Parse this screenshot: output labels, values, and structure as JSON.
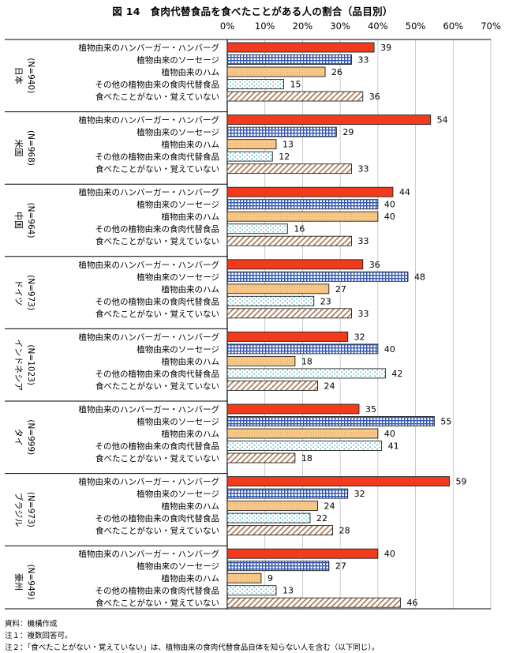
{
  "title": "図 14　食肉代替食品を食べたことがある人の割合（品目別）",
  "chart_data": {
    "type": "bar",
    "orientation": "horizontal",
    "title": "図 14　食肉代替食品を食べたことがある人の割合（品目別）",
    "xlim": [
      0,
      70
    ],
    "ticks": [
      "0%",
      "10%",
      "20%",
      "30%",
      "40%",
      "50%",
      "60%",
      "70%"
    ],
    "tick_values": [
      0,
      10,
      20,
      30,
      40,
      50,
      60,
      70
    ],
    "grid": true,
    "items": [
      "植物由来のハンバーガー・ハンバーグ",
      "植物由来のソーセージ",
      "植物由来のハム",
      "その他の植物由来の食肉代替食品",
      "食べたことがない・覚えていない"
    ],
    "item_colors": [
      "#f23a1c",
      "#4a6fc0",
      "#f8c98a",
      "#a8d4dc",
      "#c8a384"
    ],
    "groups": [
      {
        "country": "日本",
        "n": "(N=940)",
        "values": [
          39,
          33,
          26,
          15,
          36
        ]
      },
      {
        "country": "米国",
        "n": "(N=968)",
        "values": [
          54,
          29,
          13,
          12,
          33
        ]
      },
      {
        "country": "中国",
        "n": "(N=964)",
        "values": [
          44,
          40,
          40,
          16,
          33
        ]
      },
      {
        "country": "ドイツ",
        "n": "(N=973)",
        "values": [
          36,
          48,
          27,
          23,
          33
        ]
      },
      {
        "country": "インドネシア",
        "n": "(N=1023)",
        "values": [
          32,
          40,
          18,
          42,
          24
        ]
      },
      {
        "country": "タイ",
        "n": "(N=999)",
        "values": [
          35,
          55,
          40,
          41,
          18
        ]
      },
      {
        "country": "ブラジル",
        "n": "(N=973)",
        "values": [
          59,
          32,
          24,
          22,
          28
        ]
      },
      {
        "country": "豪州",
        "n": "(N=949)",
        "values": [
          40,
          27,
          9,
          13,
          46
        ]
      }
    ]
  },
  "notes": [
    "資料：機構作成",
    "注１：複数回答可。",
    "注２：「食べたことがない・覚えていない」は、植物由来の食肉代替食品自体を知らない人を含む（以下同じ）。"
  ]
}
